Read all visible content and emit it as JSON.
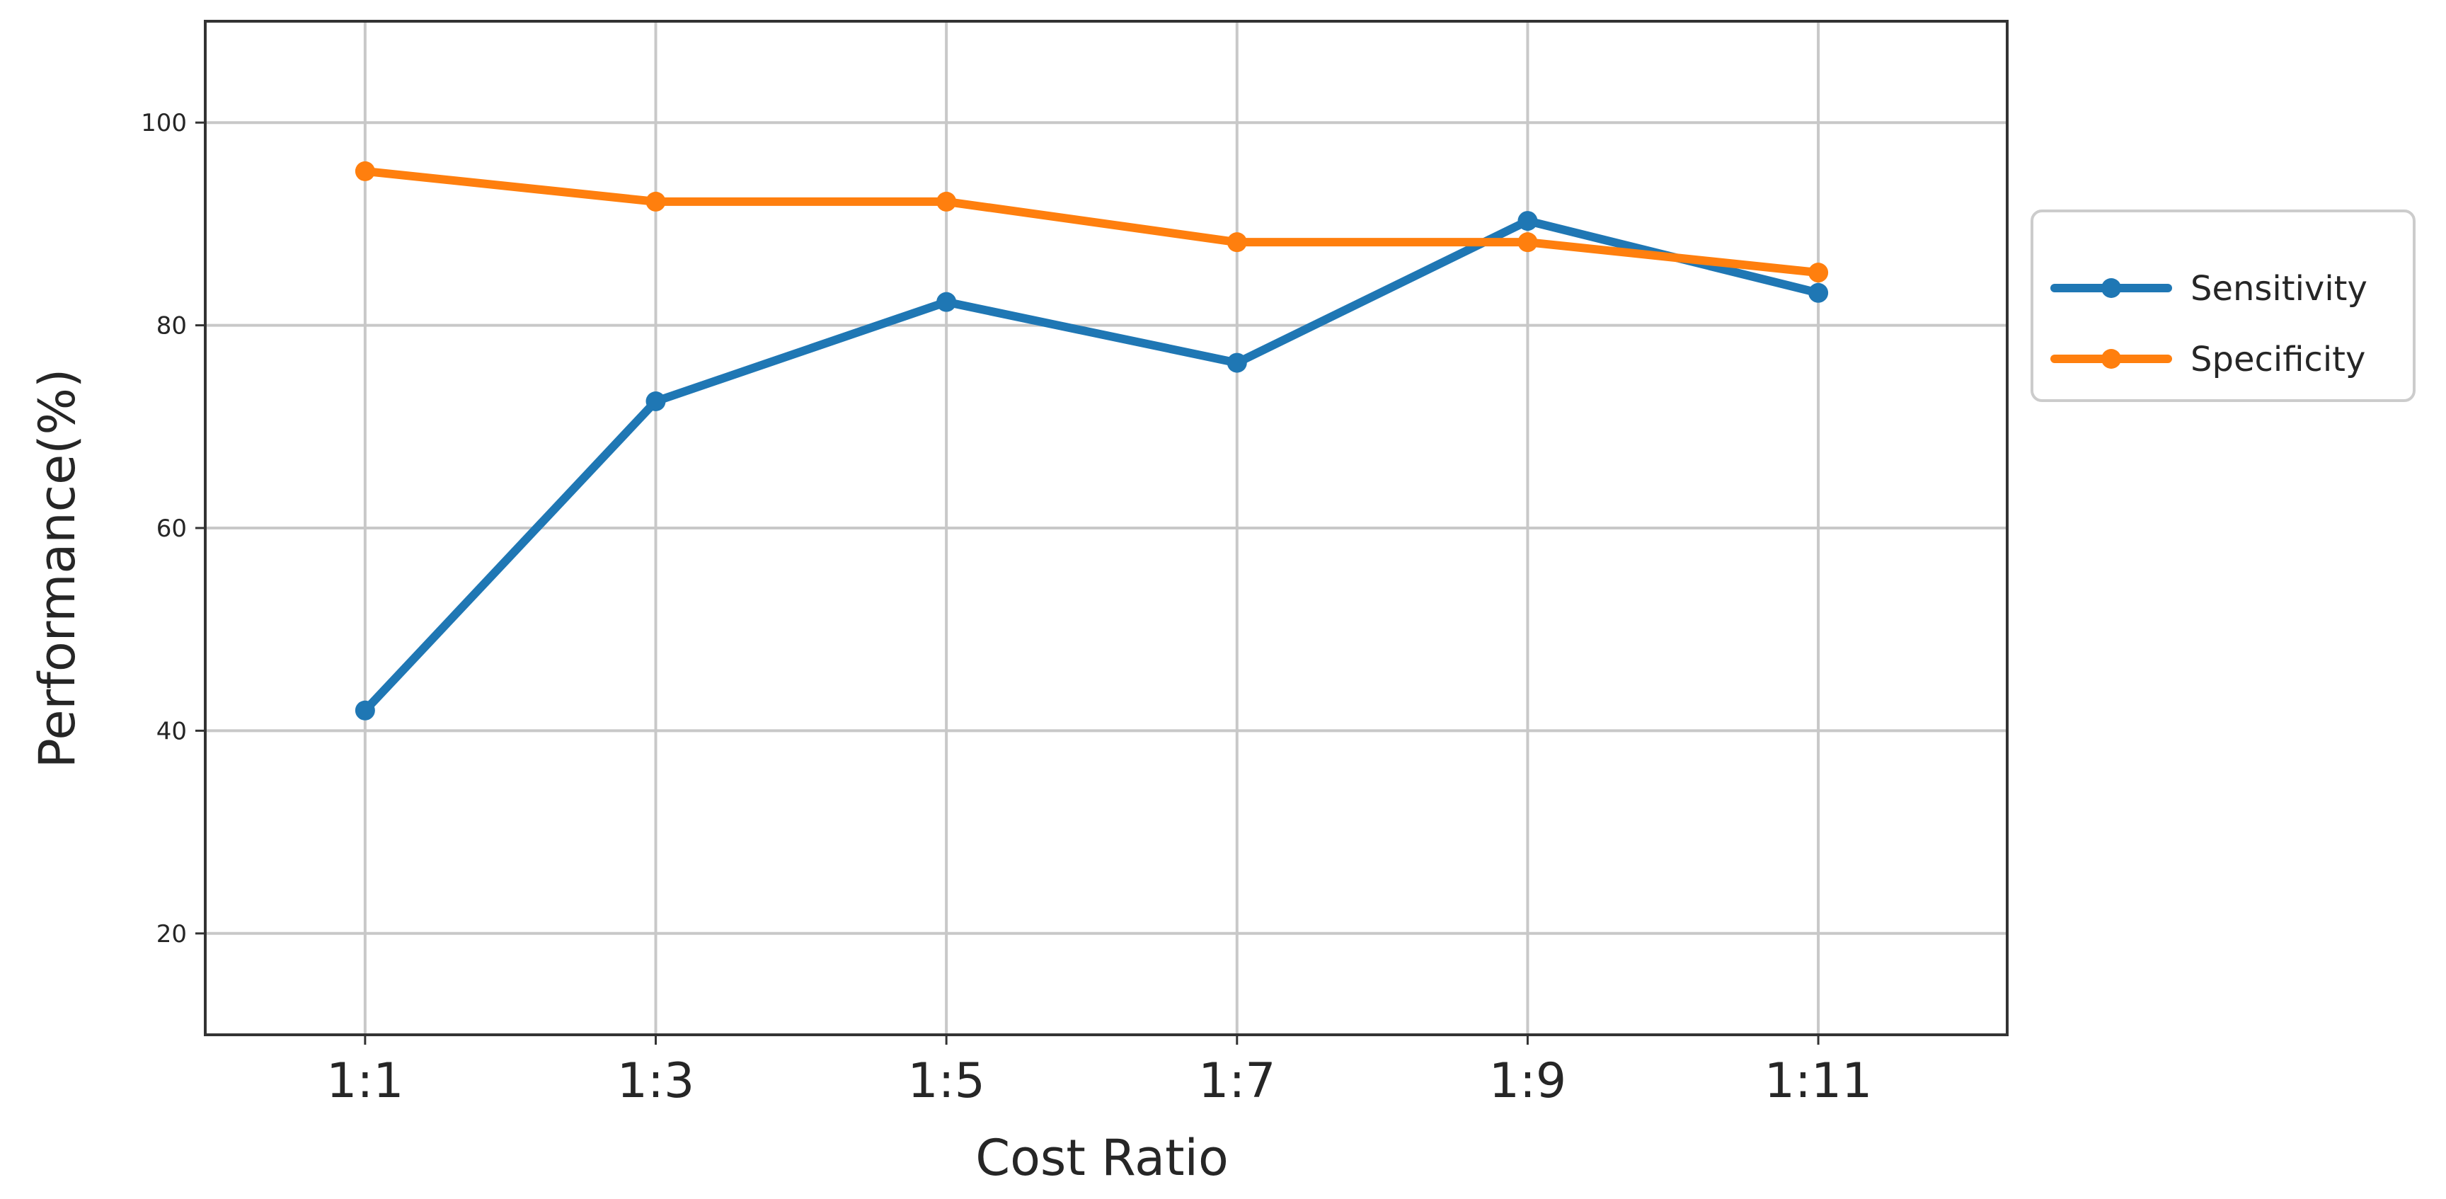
{
  "chart_data": {
    "type": "line",
    "title": "",
    "xlabel": "Cost Ratio",
    "ylabel": "Performance(%)",
    "categories": [
      "1:1",
      "1:3",
      "1:5",
      "1:7",
      "1:9",
      "1:11"
    ],
    "xlim_index": [
      -0.55,
      5.65
    ],
    "ylim": [
      10,
      110
    ],
    "yticks": [
      20,
      40,
      60,
      80,
      100
    ],
    "grid": true,
    "legend_position": "outside-right",
    "series": [
      {
        "name": "Sensitivity",
        "color": "#1f77b4",
        "values": [
          42,
          72.5,
          82.3,
          76.3,
          90.3,
          83.2
        ]
      },
      {
        "name": "Specificity",
        "color": "#ff7f0e",
        "values": [
          95.2,
          92.2,
          92.2,
          88.2,
          88.2,
          85.2
        ]
      }
    ]
  }
}
